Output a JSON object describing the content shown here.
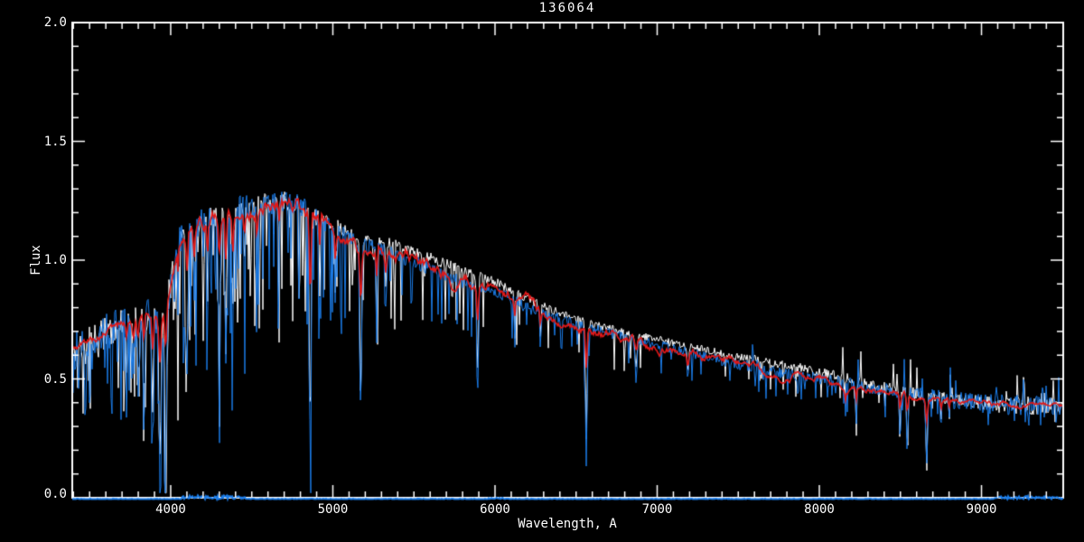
{
  "header": {
    "title": "136064"
  },
  "axes": {
    "x": {
      "label": "Wavelength, A",
      "tick_labels": [
        "4000",
        "5000",
        "6000",
        "7000",
        "8000",
        "9000"
      ]
    },
    "y": {
      "label": "Flux",
      "tick_labels": [
        "0.0",
        "0.5",
        "1.0",
        "1.5",
        "2.0"
      ]
    }
  },
  "colors": {
    "background": "#000000",
    "axis": "#ffffff",
    "spectrum_white": "#ffffff",
    "spectrum_blue": "#1b7ce8",
    "model_red": "#e01818"
  },
  "chart_data": {
    "type": "line",
    "title": "136064",
    "xlabel": "Wavelength, A",
    "ylabel": "Flux",
    "xlim": [
      3393,
      9504
    ],
    "ylim": [
      0.0,
      2.0
    ],
    "x_major_ticks": [
      4000,
      5000,
      6000,
      7000,
      8000,
      9000
    ],
    "x_minor_step": 100,
    "y_major_ticks": [
      0.0,
      0.5,
      1.0,
      1.5,
      2.0
    ],
    "y_minor_step": 0.1,
    "grid": false,
    "legend": "none",
    "series": [
      {
        "name": "observed-spectrum-white",
        "type": "noisy-line",
        "color": "#ffffff"
      },
      {
        "name": "observed-spectrum-blue",
        "type": "noisy-line",
        "color": "#1b7ce8"
      },
      {
        "name": "model-fit-red",
        "type": "smooth-line",
        "color": "#e01818"
      },
      {
        "name": "error-spectrum-zero",
        "type": "noisy-line",
        "color": "#1b7ce8",
        "level": 0.004
      }
    ],
    "continuum_points": [
      [
        3393,
        0.62
      ],
      [
        3500,
        0.66
      ],
      [
        3600,
        0.7
      ],
      [
        3700,
        0.73
      ],
      [
        3800,
        0.75
      ],
      [
        3900,
        0.77
      ],
      [
        3950,
        0.78
      ],
      [
        4000,
        0.9
      ],
      [
        4050,
        1.08
      ],
      [
        4100,
        1.13
      ],
      [
        4200,
        1.17
      ],
      [
        4300,
        1.19
      ],
      [
        4400,
        1.21
      ],
      [
        4500,
        1.23
      ],
      [
        4600,
        1.24
      ],
      [
        4700,
        1.25
      ],
      [
        4800,
        1.23
      ],
      [
        4900,
        1.17
      ],
      [
        5000,
        1.13
      ],
      [
        5100,
        1.09
      ],
      [
        5200,
        1.06
      ],
      [
        5300,
        1.05
      ],
      [
        5400,
        1.02
      ],
      [
        5500,
        0.99
      ],
      [
        5600,
        0.965
      ],
      [
        5700,
        0.94
      ],
      [
        5800,
        0.91
      ],
      [
        5900,
        0.89
      ],
      [
        6000,
        0.87
      ],
      [
        6100,
        0.835
      ],
      [
        6200,
        0.8
      ],
      [
        6300,
        0.775
      ],
      [
        6400,
        0.755
      ],
      [
        6500,
        0.73
      ],
      [
        6600,
        0.71
      ],
      [
        6700,
        0.695
      ],
      [
        6800,
        0.675
      ],
      [
        6900,
        0.66
      ],
      [
        7000,
        0.645
      ],
      [
        7100,
        0.625
      ],
      [
        7200,
        0.61
      ],
      [
        7300,
        0.595
      ],
      [
        7400,
        0.575
      ],
      [
        7500,
        0.56
      ],
      [
        7600,
        0.55
      ],
      [
        7700,
        0.535
      ],
      [
        7800,
        0.52
      ],
      [
        7900,
        0.51
      ],
      [
        8000,
        0.5
      ],
      [
        8100,
        0.49
      ],
      [
        8200,
        0.478
      ],
      [
        8300,
        0.465
      ],
      [
        8400,
        0.455
      ],
      [
        8500,
        0.445
      ],
      [
        8600,
        0.435
      ],
      [
        8700,
        0.425
      ],
      [
        8800,
        0.415
      ],
      [
        8900,
        0.405
      ],
      [
        9000,
        0.398
      ],
      [
        9100,
        0.392
      ],
      [
        9200,
        0.388
      ],
      [
        9300,
        0.384
      ],
      [
        9400,
        0.381
      ],
      [
        9504,
        0.38
      ]
    ],
    "absorption_lines": [
      [
        3727,
        12,
        0.25
      ],
      [
        3770,
        10,
        0.3
      ],
      [
        3798,
        10,
        0.35
      ],
      [
        3835,
        12,
        0.5
      ],
      [
        3889,
        12,
        0.55
      ],
      [
        3934,
        16,
        0.85
      ],
      [
        3969,
        16,
        0.78
      ],
      [
        4045,
        8,
        0.3
      ],
      [
        4101,
        12,
        0.5
      ],
      [
        4144,
        8,
        0.3
      ],
      [
        4227,
        8,
        0.35
      ],
      [
        4300,
        16,
        0.4
      ],
      [
        4340,
        12,
        0.55
      ],
      [
        4383,
        10,
        0.4
      ],
      [
        4455,
        8,
        0.25
      ],
      [
        4531,
        8,
        0.25
      ],
      [
        4668,
        8,
        0.25
      ],
      [
        4861,
        12,
        0.88
      ],
      [
        4920,
        8,
        0.3
      ],
      [
        5015,
        8,
        0.3
      ],
      [
        5172,
        14,
        0.66
      ],
      [
        5270,
        10,
        0.35
      ],
      [
        5328,
        8,
        0.25
      ],
      [
        5893,
        12,
        0.5
      ],
      [
        6122,
        8,
        0.25
      ],
      [
        6280,
        8,
        0.2
      ],
      [
        6563,
        12,
        0.8
      ],
      [
        6870,
        14,
        0.25
      ],
      [
        7190,
        10,
        0.2
      ],
      [
        8160,
        8,
        0.3
      ],
      [
        8227,
        8,
        0.35
      ],
      [
        8498,
        10,
        0.42
      ],
      [
        8542,
        12,
        0.5
      ],
      [
        8662,
        12,
        0.72
      ],
      [
        8750,
        8,
        0.3
      ],
      [
        8800,
        8,
        0.25
      ]
    ],
    "noise_amplitude_points": [
      [
        3393,
        0.075
      ],
      [
        3700,
        0.08
      ],
      [
        3950,
        0.085
      ],
      [
        4100,
        0.06
      ],
      [
        4500,
        0.055
      ],
      [
        5000,
        0.04
      ],
      [
        5500,
        0.03
      ],
      [
        6000,
        0.025
      ],
      [
        6500,
        0.022
      ],
      [
        7000,
        0.02
      ],
      [
        7500,
        0.022
      ],
      [
        8000,
        0.025
      ],
      [
        8400,
        0.028
      ],
      [
        8800,
        0.035
      ],
      [
        9200,
        0.045
      ],
      [
        9504,
        0.05
      ]
    ],
    "spike_probability_points": [
      [
        3393,
        0.3
      ],
      [
        4000,
        0.3
      ],
      [
        4600,
        0.25
      ],
      [
        5000,
        0.2
      ],
      [
        5400,
        0.14
      ],
      [
        6000,
        0.08
      ],
      [
        6500,
        0.06
      ],
      [
        7000,
        0.06
      ],
      [
        7600,
        0.07
      ],
      [
        8000,
        0.08
      ],
      [
        8600,
        0.09
      ],
      [
        9000,
        0.06
      ],
      [
        9504,
        0.05
      ]
    ],
    "spike_depth_points": [
      [
        3393,
        0.45
      ],
      [
        4000,
        0.42
      ],
      [
        4500,
        0.35
      ],
      [
        5000,
        0.28
      ],
      [
        5500,
        0.22
      ],
      [
        6000,
        0.15
      ],
      [
        6563,
        0.2
      ],
      [
        7000,
        0.12
      ],
      [
        7600,
        0.12
      ],
      [
        8000,
        0.15
      ],
      [
        8500,
        0.2
      ],
      [
        9000,
        0.12
      ],
      [
        9504,
        0.1
      ]
    ],
    "upspike_probability_points": [
      [
        3393,
        0.0
      ],
      [
        7600,
        0.0
      ],
      [
        8000,
        0.02
      ],
      [
        8800,
        0.05
      ],
      [
        9504,
        0.09
      ]
    ],
    "white_offset_points": [
      [
        3393,
        0.0
      ],
      [
        4800,
        0.0
      ],
      [
        5100,
        0.025
      ],
      [
        5600,
        0.045
      ],
      [
        6100,
        0.04
      ],
      [
        6500,
        0.02
      ],
      [
        6900,
        0.02
      ],
      [
        7400,
        0.03
      ],
      [
        7900,
        0.035
      ],
      [
        8300,
        0.015
      ],
      [
        8700,
        0.005
      ],
      [
        9504,
        0.0
      ]
    ],
    "telluric_residuals": [
      [
        7590,
        0.1
      ],
      [
        7605,
        -0.08
      ],
      [
        7618,
        0.06
      ],
      [
        7640,
        -0.05
      ]
    ],
    "series_params": {
      "white": {
        "seed": 11,
        "noise_scale": 0.8,
        "spike_scale": 0.9,
        "depth_scale": 0.85
      },
      "blue": {
        "seed": 29,
        "noise_scale": 1.0,
        "spike_scale": 1.0,
        "depth_scale": 1.0
      },
      "red": {
        "seed": 5,
        "depth_scale": 0.3,
        "wiggle": 0.012
      }
    },
    "zero_line": {
      "level": 0.004,
      "noise": 0.002,
      "bumps": [
        [
          4060,
          4460,
          0.014
        ],
        [
          5960,
          6060,
          0.005
        ],
        [
          9080,
          9500,
          0.012
        ]
      ]
    }
  }
}
